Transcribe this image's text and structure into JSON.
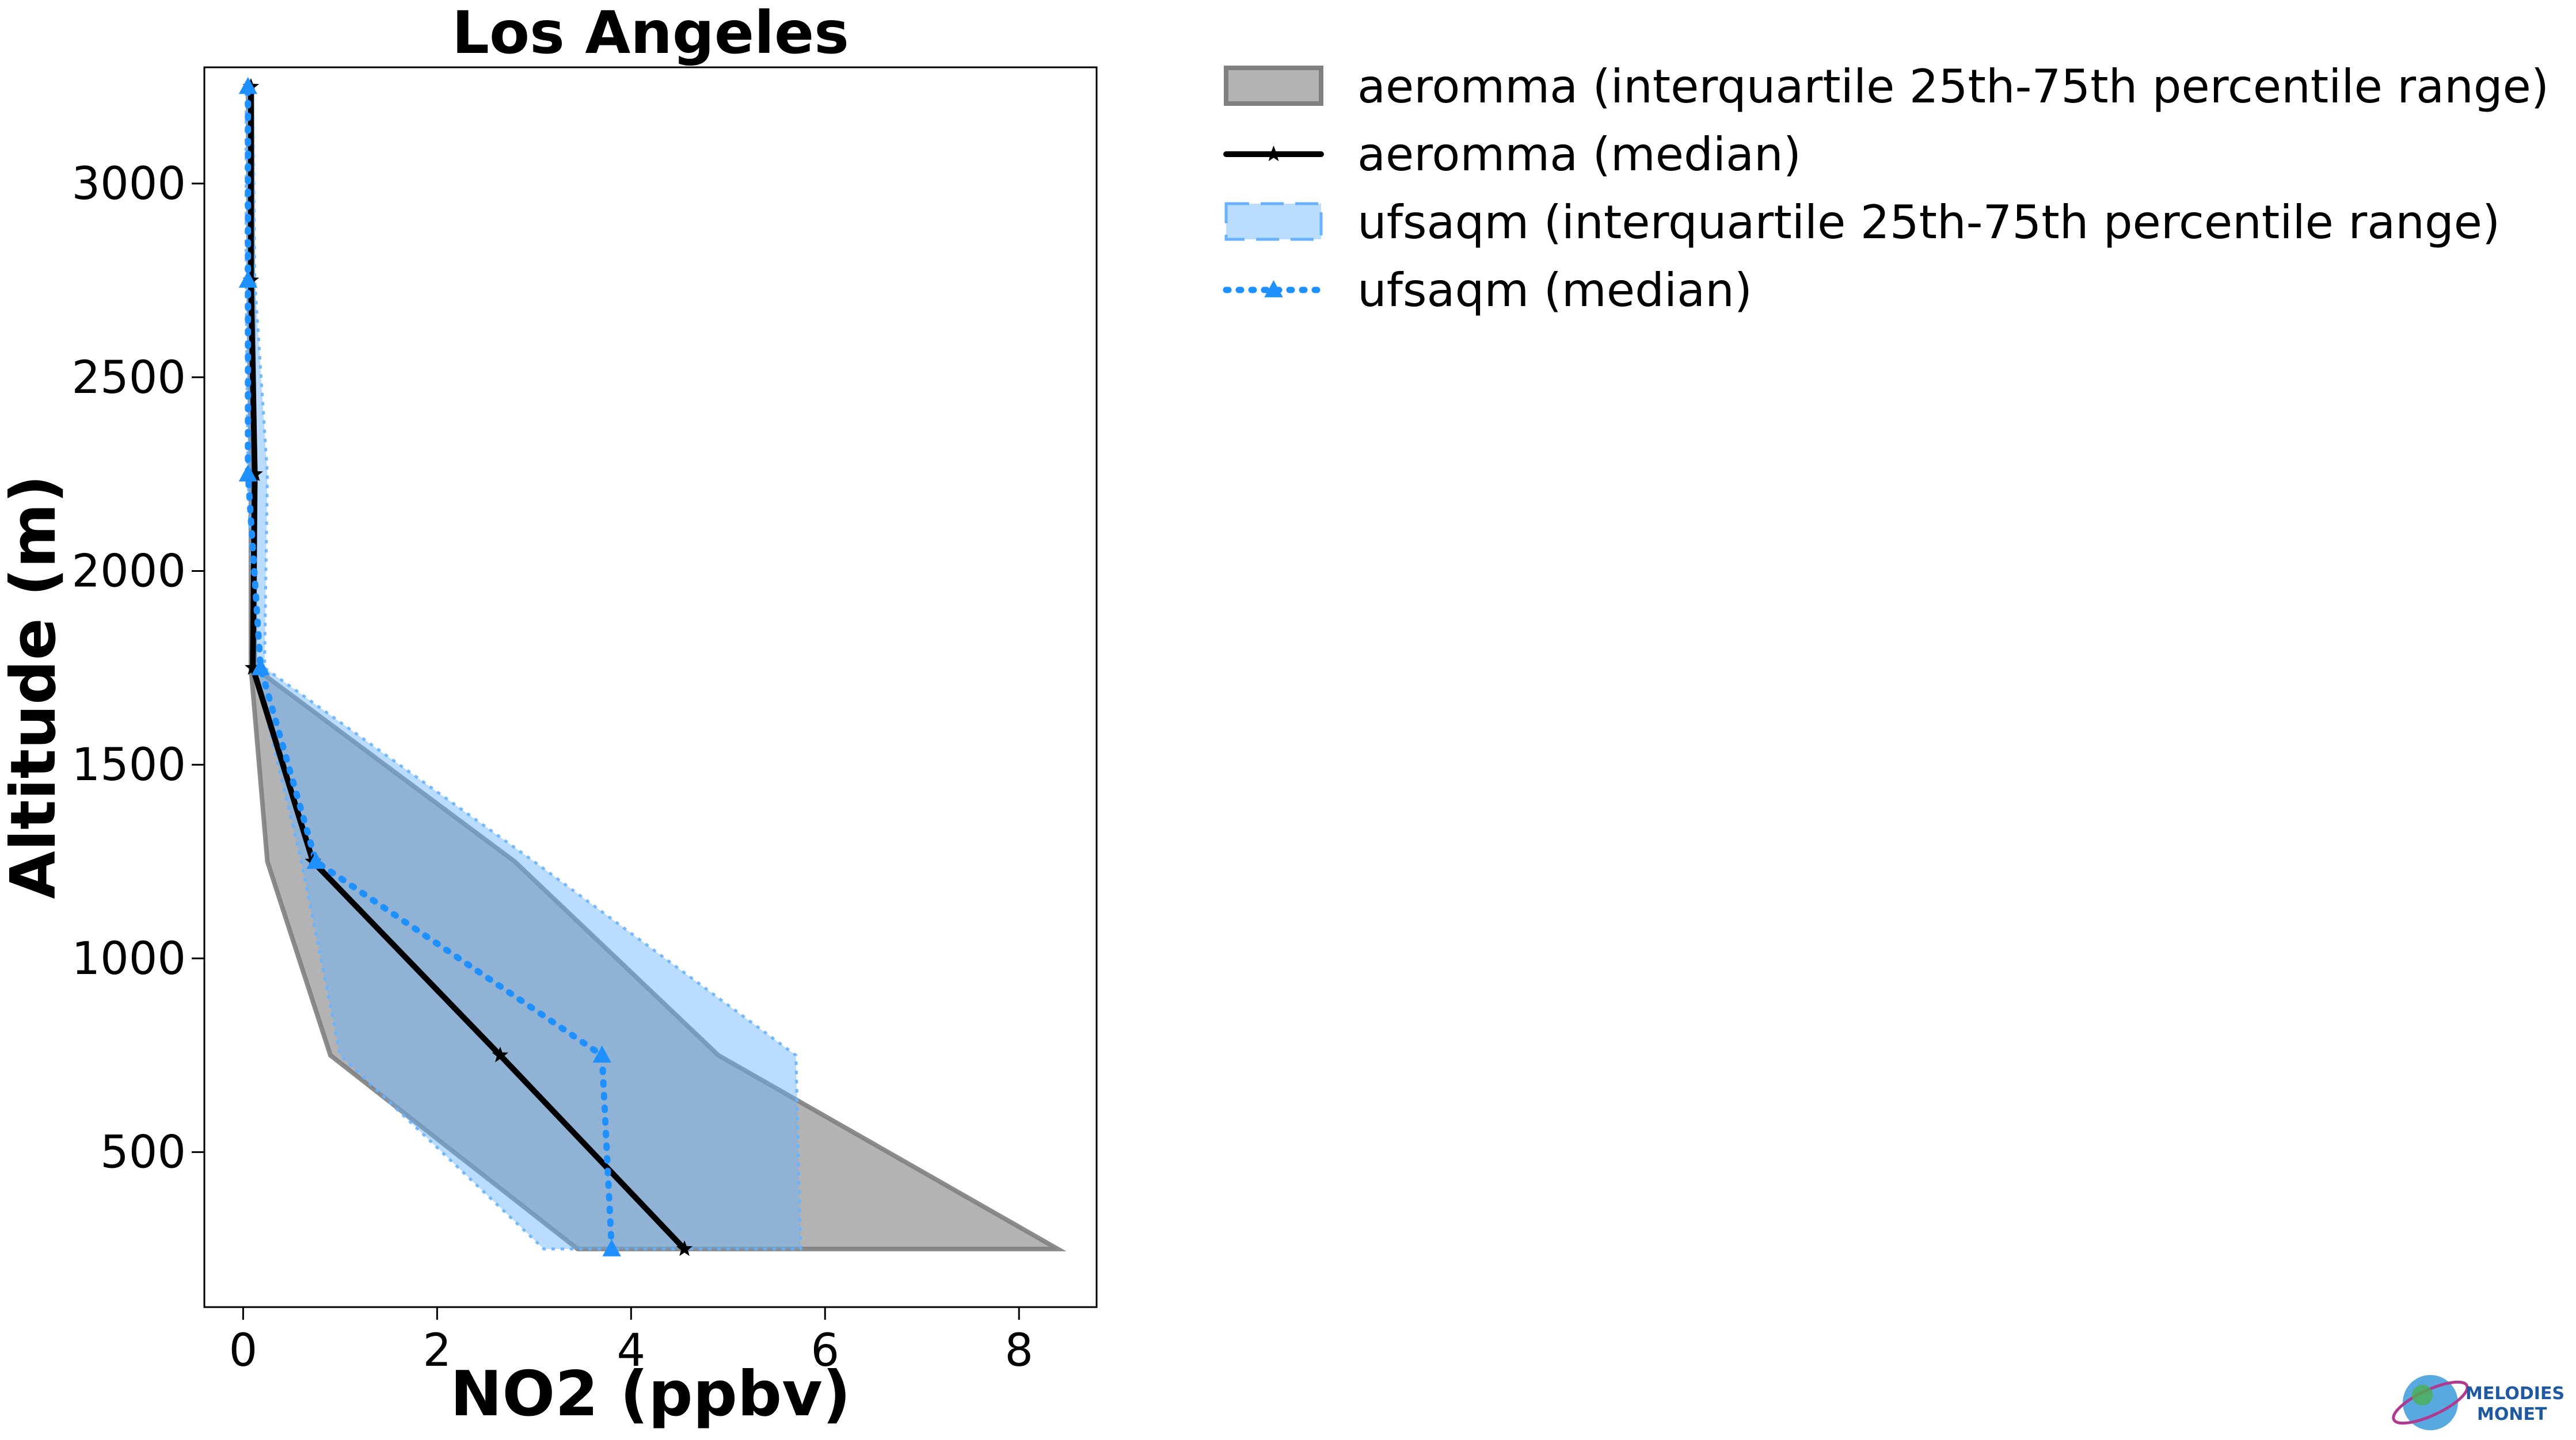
{
  "chart_data": {
    "type": "line",
    "title": "Los Angeles",
    "xlabel": "NO2 (ppbv)",
    "ylabel": "Altitude (m)",
    "xlim": [
      -0.4,
      8.8
    ],
    "ylim": [
      100,
      3300
    ],
    "xticks": [
      0,
      2,
      4,
      6,
      8
    ],
    "yticks": [
      500,
      1000,
      1500,
      2000,
      2500,
      3000
    ],
    "grid": false,
    "legend_position": "outside-top-right",
    "altitudes": [
      250,
      750,
      1250,
      1750,
      2250,
      2750,
      3250
    ],
    "series": [
      {
        "name": "aeromma (interquartile 25th-75th percentile range)",
        "kind": "band",
        "color": "#808080",
        "lower": [
          3.45,
          0.9,
          0.25,
          0.08,
          0.08,
          0.06,
          0.05
        ],
        "upper": [
          8.4,
          4.9,
          2.8,
          0.12,
          0.12,
          0.1,
          0.09
        ]
      },
      {
        "name": "aeromma (median)",
        "kind": "line",
        "marker": "star",
        "color": "#000000",
        "values": [
          4.55,
          2.65,
          0.72,
          0.1,
          0.12,
          0.08,
          0.08
        ]
      },
      {
        "name": "ufsaqm (interquartile 25th-75th percentile range)",
        "kind": "band",
        "color": "#66b2ff",
        "lower": [
          3.1,
          1.0,
          0.6,
          0.12,
          0.05,
          0.03,
          0.03
        ],
        "upper": [
          5.75,
          5.7,
          3.0,
          0.22,
          0.25,
          0.12,
          0.1
        ]
      },
      {
        "name": "ufsaqm (median)",
        "kind": "line",
        "marker": "triangle",
        "linestyle": "dotted",
        "color": "#1e90ff",
        "values": [
          3.8,
          3.7,
          0.75,
          0.18,
          0.05,
          0.05,
          0.05
        ]
      }
    ]
  },
  "logo": {
    "text_line1": "MELODIES",
    "text_line2": "MONET"
  }
}
